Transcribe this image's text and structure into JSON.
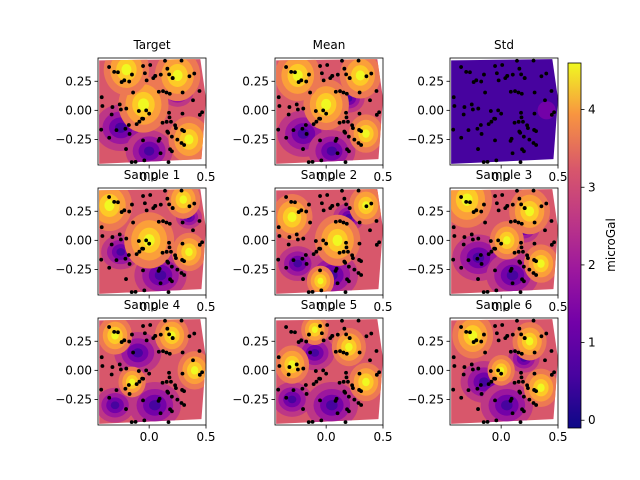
{
  "chart_data": {
    "type": "heatmap",
    "colormap": "plasma",
    "x_ticks": [
      0.0,
      0.5
    ],
    "x_tick_labels": [
      "0.0",
      "0.5"
    ],
    "y_ticks": [
      0.25,
      0.0,
      -0.25
    ],
    "y_tick_labels": [
      "0.25",
      "0.00",
      "−0.25"
    ],
    "xlim": [
      -0.45,
      0.5
    ],
    "ylim": [
      -0.47,
      0.45
    ],
    "panels": [
      {
        "title": "Target",
        "hot": [
          [
            -0.05,
            0.05,
            0.22
          ],
          [
            0.25,
            0.3,
            0.2
          ],
          [
            -0.2,
            0.35,
            0.2
          ],
          [
            0.35,
            -0.25,
            0.18
          ]
        ],
        "cold": [
          [
            -0.25,
            -0.15,
            0.2
          ],
          [
            0.0,
            -0.35,
            0.18
          ],
          [
            0.25,
            0.15,
            0.12
          ]
        ]
      },
      {
        "title": "Mean",
        "hot": [
          [
            0.0,
            0.05,
            0.2
          ],
          [
            -0.25,
            0.3,
            0.2
          ],
          [
            0.3,
            0.3,
            0.18
          ],
          [
            0.35,
            -0.2,
            0.15
          ]
        ],
        "cold": [
          [
            -0.2,
            -0.2,
            0.2
          ],
          [
            0.05,
            -0.35,
            0.18
          ],
          [
            0.2,
            0.1,
            0.12
          ]
        ]
      },
      {
        "title": "Std",
        "hot": [
          [
            0.4,
            0.0,
            0.08
          ]
        ],
        "cold": [],
        "std": true
      },
      {
        "title": "Sample 1",
        "hot": [
          [
            0.0,
            0.0,
            0.22
          ],
          [
            -0.35,
            0.3,
            0.2
          ],
          [
            0.3,
            0.35,
            0.15
          ],
          [
            0.35,
            -0.1,
            0.15
          ]
        ],
        "cold": [
          [
            0.1,
            -0.3,
            0.2
          ],
          [
            -0.25,
            -0.1,
            0.15
          ],
          [
            0.35,
            0.2,
            0.1
          ]
        ]
      },
      {
        "title": "Sample 2",
        "hot": [
          [
            0.1,
            0.0,
            0.2
          ],
          [
            -0.3,
            0.2,
            0.18
          ],
          [
            0.35,
            0.3,
            0.15
          ],
          [
            -0.05,
            -0.35,
            0.12
          ]
        ],
        "cold": [
          [
            0.05,
            -0.3,
            0.2
          ],
          [
            -0.25,
            -0.2,
            0.15
          ],
          [
            0.2,
            0.2,
            0.12
          ]
        ]
      },
      {
        "title": "Sample 3",
        "hot": [
          [
            -0.3,
            0.35,
            0.22
          ],
          [
            0.25,
            0.25,
            0.18
          ],
          [
            0.05,
            0.0,
            0.15
          ],
          [
            0.35,
            -0.2,
            0.15
          ]
        ],
        "cold": [
          [
            -0.2,
            -0.15,
            0.2
          ],
          [
            0.1,
            -0.3,
            0.2
          ],
          [
            0.2,
            0.1,
            0.12
          ]
        ]
      },
      {
        "title": "Sample 4",
        "hot": [
          [
            -0.3,
            0.3,
            0.15
          ],
          [
            0.2,
            0.3,
            0.15
          ],
          [
            0.4,
            0.0,
            0.15
          ],
          [
            -0.15,
            -0.1,
            0.12
          ]
        ],
        "cold": [
          [
            -0.1,
            0.15,
            0.18
          ],
          [
            0.05,
            -0.3,
            0.2
          ],
          [
            -0.3,
            -0.3,
            0.15
          ]
        ]
      },
      {
        "title": "Sample 5",
        "hot": [
          [
            0.2,
            0.2,
            0.15
          ],
          [
            -0.3,
            0.05,
            0.15
          ],
          [
            0.35,
            -0.1,
            0.15
          ],
          [
            -0.1,
            0.35,
            0.12
          ]
        ],
        "cold": [
          [
            -0.1,
            0.15,
            0.15
          ],
          [
            0.05,
            -0.3,
            0.2
          ],
          [
            -0.3,
            -0.25,
            0.15
          ]
        ]
      },
      {
        "title": "Sample 6",
        "hot": [
          [
            -0.25,
            0.3,
            0.18
          ],
          [
            0.25,
            0.25,
            0.15
          ],
          [
            0.35,
            -0.15,
            0.15
          ],
          [
            0.0,
            0.0,
            0.12
          ]
        ],
        "cold": [
          [
            -0.15,
            -0.1,
            0.18
          ],
          [
            0.05,
            -0.3,
            0.2
          ],
          [
            0.2,
            0.1,
            0.12
          ]
        ]
      }
    ],
    "colorbar": {
      "label": "microGal",
      "min": -0.1,
      "max": 4.6,
      "ticks": [
        0,
        1,
        2,
        3,
        4
      ],
      "tick_labels": [
        "0",
        "1",
        "2",
        "3",
        "4"
      ]
    }
  }
}
